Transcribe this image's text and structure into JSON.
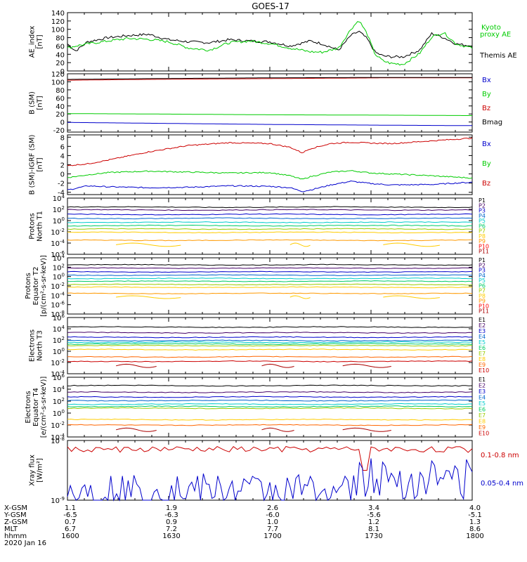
{
  "title": "GOES-17",
  "chart_data": [
    {
      "type": "line",
      "name": "ae",
      "ylabel": [
        "AE_index",
        "[nT]"
      ],
      "ylim": [
        0,
        140
      ],
      "scale": "linear",
      "yticks": [
        0,
        20,
        40,
        60,
        80,
        100,
        120,
        140
      ],
      "series": [
        {
          "name": "Themis AE",
          "color": "#000000",
          "x": [
            0,
            0.02,
            0.05,
            0.1,
            0.15,
            0.2,
            0.25,
            0.3,
            0.35,
            0.4,
            0.45,
            0.5,
            0.55,
            0.6,
            0.63,
            0.67,
            0.7,
            0.72,
            0.74,
            0.76,
            0.78,
            0.8,
            0.83,
            0.87,
            0.9,
            0.93,
            0.96,
            1
          ],
          "y": [
            65,
            48,
            70,
            80,
            85,
            88,
            75,
            70,
            68,
            75,
            72,
            70,
            60,
            72,
            65,
            50,
            85,
            95,
            78,
            45,
            36,
            34,
            34,
            50,
            90,
            80,
            65,
            60
          ]
        },
        {
          "name": "Kyoto proxy AE",
          "color": "#00cc00",
          "x": [
            0,
            0.02,
            0.05,
            0.1,
            0.15,
            0.2,
            0.25,
            0.3,
            0.35,
            0.4,
            0.45,
            0.5,
            0.55,
            0.6,
            0.63,
            0.67,
            0.7,
            0.72,
            0.74,
            0.76,
            0.78,
            0.8,
            0.83,
            0.87,
            0.9,
            0.93,
            0.96,
            1
          ],
          "y": [
            55,
            60,
            65,
            72,
            78,
            76,
            70,
            55,
            50,
            68,
            72,
            66,
            55,
            46,
            45,
            55,
            100,
            122,
            90,
            40,
            24,
            18,
            16,
            42,
            82,
            92,
            65,
            55
          ]
        }
      ],
      "legend": [
        "Kyoto proxy AE",
        "Themis AE"
      ]
    },
    {
      "type": "line",
      "name": "bsm",
      "ylabel": [
        "B (SM)",
        "[nT]"
      ],
      "ylim": [
        -25,
        120
      ],
      "scale": "linear",
      "yticks": [
        -20,
        0,
        20,
        40,
        60,
        80,
        100,
        120
      ],
      "series": [
        {
          "name": "Bx",
          "color": "#0000cc",
          "x": [
            0,
            0.2,
            0.5,
            0.8,
            1
          ],
          "y": [
            -1,
            -3,
            -6,
            -8,
            -9
          ]
        },
        {
          "name": "By",
          "color": "#00cc00",
          "x": [
            0,
            0.2,
            0.5,
            0.8,
            1
          ],
          "y": [
            21,
            20,
            18,
            17,
            16
          ]
        },
        {
          "name": "Bz",
          "color": "#cc0000",
          "x": [
            0,
            0.2,
            0.5,
            0.8,
            1
          ],
          "y": [
            104,
            106,
            108,
            110,
            110
          ]
        },
        {
          "name": "Bmag",
          "color": "#000000",
          "x": [
            0,
            0.2,
            0.5,
            0.8,
            1
          ],
          "y": [
            106,
            108,
            110,
            111,
            111
          ]
        }
      ],
      "legend": [
        "Bx",
        "By",
        "Bz",
        "Bmag"
      ]
    },
    {
      "type": "line",
      "name": "bdiff",
      "ylabel": [
        "B (SM)-IGRF (SM)",
        "[nT]"
      ],
      "ylim": [
        -4.5,
        8.5
      ],
      "scale": "linear",
      "yticks": [
        -4,
        -2,
        0,
        2,
        4,
        6,
        8
      ],
      "series": [
        {
          "name": "Bx",
          "color": "#0000cc",
          "x": [
            0,
            0.05,
            0.1,
            0.2,
            0.3,
            0.4,
            0.5,
            0.55,
            0.58,
            0.6,
            0.65,
            0.7,
            0.75,
            0.8,
            0.9,
            1
          ],
          "y": [
            -3.5,
            -2.6,
            -2.8,
            -3.0,
            -2.9,
            -2.6,
            -2.7,
            -3.0,
            -3.8,
            -3.5,
            -2.4,
            -1.6,
            -2.1,
            -2.4,
            -2.3,
            -1.8
          ]
        },
        {
          "name": "By",
          "color": "#00cc00",
          "x": [
            0,
            0.05,
            0.1,
            0.2,
            0.3,
            0.4,
            0.5,
            0.55,
            0.58,
            0.6,
            0.65,
            0.7,
            0.75,
            0.8,
            0.9,
            1
          ],
          "y": [
            -0.8,
            -0.2,
            0.3,
            0.6,
            0.4,
            0.2,
            0.3,
            -0.4,
            -1.2,
            -0.6,
            0.4,
            0.7,
            0.2,
            0.0,
            -0.4,
            -0.9
          ]
        },
        {
          "name": "Bz",
          "color": "#cc0000",
          "x": [
            0,
            0.05,
            0.1,
            0.2,
            0.3,
            0.4,
            0.5,
            0.55,
            0.58,
            0.6,
            0.65,
            0.7,
            0.75,
            0.8,
            0.9,
            1
          ],
          "y": [
            1.8,
            2.2,
            3.0,
            4.8,
            6.2,
            6.8,
            6.6,
            5.8,
            4.6,
            5.5,
            6.6,
            6.9,
            6.7,
            6.6,
            7.2,
            7.8
          ]
        }
      ],
      "legend": [
        "Bx",
        "By",
        "Bz"
      ]
    },
    {
      "type": "line",
      "name": "p1",
      "ylabel": [
        "Protons",
        "North T1"
      ],
      "ylim": [
        -6,
        4
      ],
      "scale": "log",
      "yticks": [
        -6,
        -4,
        -2,
        0,
        2,
        4
      ],
      "levels": [
        2.4,
        1.9,
        1.1,
        0.4,
        -0.3,
        -0.9,
        -1.5,
        -2.1,
        -3.5
      ],
      "colors": [
        "#000000",
        "#440066",
        "#0000cc",
        "#0066cc",
        "#00cccc",
        "#00cc66",
        "#99cc00",
        "#ffcc00",
        "#ff9900",
        "#ff0000",
        "#aa0000"
      ],
      "legend": [
        "P1",
        "P2",
        "P3",
        "P4",
        "P5",
        "P6",
        "P7",
        "P8",
        "P9",
        "P10",
        "P11"
      ]
    },
    {
      "type": "line",
      "name": "p2",
      "ylabel": [
        "Protons",
        "Equator T2",
        "[p/(cm²-s-sr-keV)]"
      ],
      "ylim": [
        -8,
        4
      ],
      "scale": "log",
      "yticks": [
        -8,
        -6,
        -4,
        -2,
        0,
        2,
        4
      ],
      "levels": [
        2.5,
        1.8,
        1.0,
        0.3,
        -0.4,
        -1.0,
        -1.7,
        -2.3,
        -3.6
      ],
      "colors": [
        "#000000",
        "#440066",
        "#0000cc",
        "#0066cc",
        "#00cccc",
        "#00cc66",
        "#99cc00",
        "#ffcc00",
        "#ff9900",
        "#ff0000",
        "#aa0000"
      ],
      "legend": [
        "P1",
        "P2",
        "P3",
        "P4",
        "P5",
        "P6",
        "P7",
        "P8",
        "P9",
        "P10",
        "P11"
      ]
    },
    {
      "type": "line",
      "name": "e1",
      "ylabel": [
        "Electrons",
        "North T3"
      ],
      "ylim": [
        -4,
        6
      ],
      "scale": "log",
      "yticks": [
        -4,
        -2,
        0,
        2,
        4,
        6
      ],
      "levels": [
        4.3,
        3.3,
        2.5,
        1.9,
        1.6,
        1.3,
        1.0,
        0.3,
        -1.0,
        -1.8
      ],
      "colors": [
        "#000000",
        "#440066",
        "#0000cc",
        "#0066cc",
        "#00cccc",
        "#00cc66",
        "#99cc00",
        "#ffcc00",
        "#ff6600",
        "#cc0000",
        "#880000"
      ],
      "legend": [
        "E1",
        "E2",
        "E3",
        "E4",
        "E5",
        "E6",
        "E7",
        "E8",
        "E9",
        "E10"
      ]
    },
    {
      "type": "line",
      "name": "e2",
      "ylabel": [
        "Electrons",
        "Equator T4",
        "[e/(cm²-s-sr-keV)]"
      ],
      "ylim": [
        -4,
        6
      ],
      "scale": "log",
      "yticks": [
        -4,
        -2,
        0,
        2,
        4,
        6
      ],
      "levels": [
        4.6,
        3.5,
        2.7,
        2.1,
        1.5,
        1.1,
        0.8,
        -1.1,
        -2.0
      ],
      "colors": [
        "#000000",
        "#440066",
        "#0000cc",
        "#0066cc",
        "#00cccc",
        "#00cc66",
        "#99cc00",
        "#ffcc00",
        "#ff6600",
        "#cc0000",
        "#880000"
      ],
      "legend": [
        "E1",
        "E2",
        "E3",
        "E4",
        "E5",
        "E6",
        "E7",
        "E8",
        "E9",
        "E10"
      ]
    },
    {
      "type": "line",
      "name": "xray",
      "ylabel": [
        "Xray flux",
        "[W/m²]"
      ],
      "ylim": [
        -9,
        -8
      ],
      "scale": "log",
      "yticks": [
        -9,
        -8
      ],
      "series": [
        {
          "name": "0.1-0.8 nm",
          "color": "#cc0000"
        },
        {
          "name": "0.05-0.4 nm",
          "color": "#0000cc"
        }
      ],
      "legend": [
        "0.1-0.8 nm",
        "0.05-0.4 nm"
      ]
    }
  ],
  "xaxis": {
    "rows": [
      {
        "label": "X-GSM",
        "values": [
          "1.1",
          "1.9",
          "2.6",
          "3.4",
          "4.0"
        ]
      },
      {
        "label": "Y-GSM",
        "values": [
          "-6.5",
          "-6.3",
          "-6.0",
          "-5.6",
          "-5.1"
        ]
      },
      {
        "label": "Z-GSM",
        "values": [
          "0.7",
          "0.9",
          "1.0",
          "1.2",
          "1.3"
        ]
      },
      {
        "label": "MLT",
        "values": [
          "6.7",
          "7.2",
          "7.7",
          "8.1",
          "8.6"
        ]
      },
      {
        "label": "hhmm",
        "values": [
          "1600",
          "1630",
          "1700",
          "1730",
          "1800"
        ]
      }
    ],
    "date": "2020 Jan 16"
  },
  "legend_labels": {
    "ae": [
      "Kyoto",
      "proxy AE",
      "Themis AE"
    ],
    "bsm": [
      "Bx",
      "By",
      "Bz",
      "Bmag"
    ],
    "bdiff": [
      "Bx",
      "By",
      "Bz"
    ],
    "xray": [
      "0.1-0.8 nm",
      "0.05-0.4 nm"
    ]
  }
}
